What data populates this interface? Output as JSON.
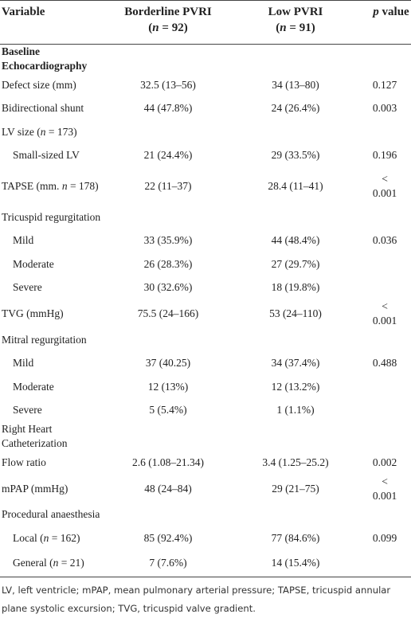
{
  "table": {
    "header": [
      [
        [
          "Variable"
        ]
      ],
      [
        [
          "Borderline PVRI"
        ],
        [
          "(",
          {
            "text": "n",
            "italic": true
          },
          " = 92)"
        ]
      ],
      [
        [
          "Low PVRI"
        ],
        [
          "(",
          {
            "text": "n",
            "italic": true
          },
          " = 91)"
        ]
      ],
      [
        [
          {
            "text": "p",
            "italic": true
          },
          " value"
        ]
      ]
    ],
    "rows": [
      {
        "kind": "section",
        "cells": [
          [
            "Baseline Echocardiography"
          ],
          null,
          null,
          null
        ]
      },
      {
        "kind": "item",
        "cells": [
          [
            "Defect size (mm)"
          ],
          "32.5 (13–56)",
          "34 (13–80)",
          "0.127"
        ]
      },
      {
        "kind": "item",
        "cells": [
          [
            "Bidirectional shunt"
          ],
          "44 (47.8%)",
          "24 (26.4%)",
          "0.003"
        ]
      },
      {
        "kind": "item",
        "cells": [
          [
            "LV size (",
            {
              "text": "n",
              "italic": true
            },
            " = 173)"
          ],
          null,
          null,
          null
        ]
      },
      {
        "kind": "sub",
        "cells": [
          [
            "Small-sized LV"
          ],
          "21 (24.4%)",
          "29 (33.5%)",
          "0.196"
        ]
      },
      {
        "kind": "item",
        "cells": [
          [
            "TAPSE (mm. ",
            {
              "text": "n",
              "italic": true
            },
            " = 178)"
          ],
          "22 (11–37)",
          "28.4 (11–41)",
          "< 0.001"
        ]
      },
      {
        "kind": "item",
        "cells": [
          [
            "Tricuspid regurgitation"
          ],
          null,
          null,
          null
        ]
      },
      {
        "kind": "sub",
        "cells": [
          [
            "Mild"
          ],
          "33 (35.9%)",
          "44 (48.4%)",
          "0.036"
        ]
      },
      {
        "kind": "sub",
        "cells": [
          [
            "Moderate"
          ],
          "26 (28.3%)",
          "27 (29.7%)",
          null
        ]
      },
      {
        "kind": "sub",
        "cells": [
          [
            "Severe"
          ],
          "30 (32.6%)",
          "18 (19.8%)",
          null
        ]
      },
      {
        "kind": "item",
        "cells": [
          [
            "TVG (mmHg)"
          ],
          "75.5 (24–166)",
          "53 (24–110)",
          "< 0.001"
        ]
      },
      {
        "kind": "item",
        "cells": [
          [
            "Mitral regurgitation"
          ],
          null,
          null,
          null
        ]
      },
      {
        "kind": "sub",
        "cells": [
          [
            "Mild"
          ],
          "37 (40.25)",
          "34 (37.4%)",
          "0.488"
        ]
      },
      {
        "kind": "sub",
        "cells": [
          [
            "Moderate"
          ],
          "12 (13%)",
          "12 (13.2%)",
          null
        ]
      },
      {
        "kind": "sub",
        "cells": [
          [
            "Severe"
          ],
          "5 (5.4%)",
          "1 (1.1%)",
          null
        ]
      },
      {
        "kind": "item",
        "cells": [
          [
            "Right Heart Catheterization"
          ],
          null,
          null,
          null
        ]
      },
      {
        "kind": "item",
        "cells": [
          [
            "Flow ratio"
          ],
          "2.6 (1.08–21.34)",
          "3.4 (1.25–25.2)",
          "0.002"
        ]
      },
      {
        "kind": "item",
        "cells": [
          [
            "mPAP (mmHg)"
          ],
          "48 (24–84)",
          "29 (21–75)",
          "< 0.001"
        ]
      },
      {
        "kind": "item",
        "cells": [
          [
            "Procedural anaesthesia"
          ],
          null,
          null,
          null
        ]
      },
      {
        "kind": "sub",
        "cells": [
          [
            "Local (",
            {
              "text": "n",
              "italic": true
            },
            " = 162)"
          ],
          "85 (92.4%)",
          "77 (84.6%)",
          "0.099"
        ]
      },
      {
        "kind": "sub",
        "cells": [
          [
            "General (",
            {
              "text": "n",
              "italic": true
            },
            " = 21)"
          ],
          "7 (7.6%)",
          "14 (15.4%)",
          null
        ]
      }
    ],
    "footnote": "LV, left ventricle; mPAP, mean pulmonary arterial pressure; TAPSE, tricuspid annular plane systolic excursion; TVG, tricuspid valve gradient."
  }
}
